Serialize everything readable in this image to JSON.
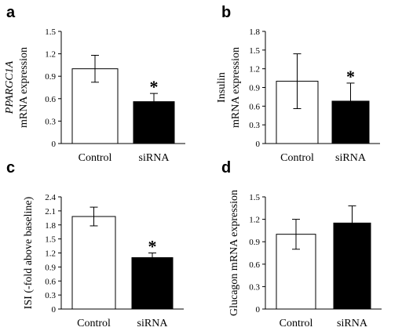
{
  "chart_data": [
    {
      "type": "bar",
      "panel": "a",
      "categories": [
        "Control",
        "siRNA"
      ],
      "values": [
        1.0,
        0.56
      ],
      "errors": [
        0.18,
        0.11
      ],
      "significance": [
        "",
        "*"
      ],
      "bar_colors": [
        "#ffffff",
        "#000000"
      ],
      "ylabel_lines": [
        "PPARGC1A",
        "mRNA expression"
      ],
      "ylim": [
        0,
        1.5
      ],
      "yticks": [
        0,
        0.3,
        0.6,
        0.9,
        1.2,
        1.5
      ],
      "ytick_labels": [
        "0",
        "0.3",
        "0.6",
        "0.9",
        "1.2",
        "1.5"
      ]
    },
    {
      "type": "bar",
      "panel": "b",
      "categories": [
        "Control",
        "siRNA"
      ],
      "values": [
        1.0,
        0.68
      ],
      "errors": [
        0.44,
        0.29
      ],
      "significance": [
        "",
        "*"
      ],
      "bar_colors": [
        "#ffffff",
        "#000000"
      ],
      "ylabel_lines": [
        "Insulin",
        "mRNA expression"
      ],
      "ylim": [
        0,
        1.8
      ],
      "yticks": [
        0,
        0.3,
        0.6,
        0.9,
        1.2,
        1.5,
        1.8
      ],
      "ytick_labels": [
        "0",
        "0.3",
        "0.6",
        "0.9",
        "1.2",
        "1.5",
        "1.8"
      ]
    },
    {
      "type": "bar",
      "panel": "c",
      "categories": [
        "Control",
        "siRNA"
      ],
      "values": [
        1.98,
        1.1
      ],
      "errors": [
        0.2,
        0.1
      ],
      "significance": [
        "",
        "*"
      ],
      "bar_colors": [
        "#ffffff",
        "#000000"
      ],
      "ylabel_lines": [
        "ISI (-fold above baseline)"
      ],
      "ylim": [
        0,
        2.4
      ],
      "yticks": [
        0,
        0.3,
        0.6,
        0.9,
        1.2,
        1.5,
        1.8,
        2.1,
        2.4
      ],
      "ytick_labels": [
        "0",
        "0.3",
        "0.6",
        "0.9",
        "1.2",
        "1.5",
        "1.8",
        "2.1",
        "2.4"
      ]
    },
    {
      "type": "bar",
      "panel": "d",
      "categories": [
        "Control",
        "siRNA"
      ],
      "values": [
        1.0,
        1.15
      ],
      "errors": [
        0.2,
        0.23
      ],
      "significance": [
        "",
        ""
      ],
      "bar_colors": [
        "#ffffff",
        "#000000"
      ],
      "ylabel_lines": [
        "Glucagon mRNA expression"
      ],
      "ylim": [
        0,
        1.5
      ],
      "yticks": [
        0,
        0.3,
        0.6,
        0.9,
        1.2,
        1.5
      ],
      "ytick_labels": [
        "0",
        "0.3",
        "0.6",
        "0.9",
        "1.2",
        "1.5"
      ]
    }
  ]
}
